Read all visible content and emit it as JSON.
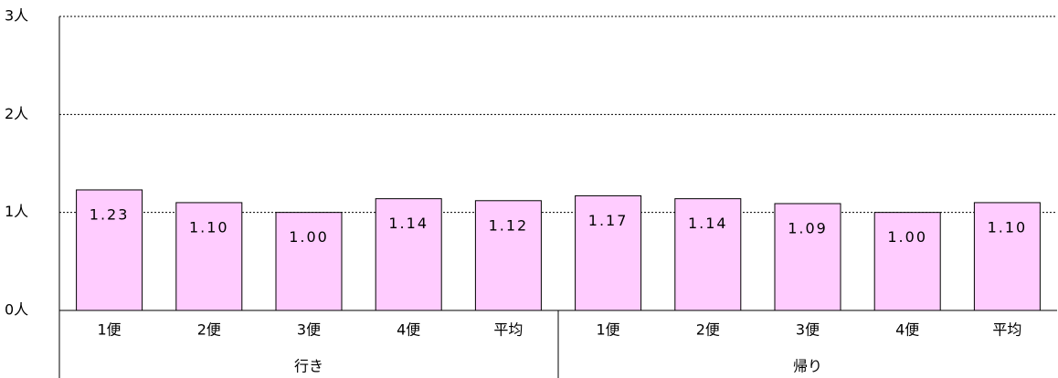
{
  "chart_data": {
    "type": "bar",
    "categories": [
      "1便",
      "2便",
      "3便",
      "4便",
      "平均",
      "1便",
      "2便",
      "3便",
      "4便",
      "平均"
    ],
    "category_groups": [
      {
        "label": "行き",
        "span": 5
      },
      {
        "label": "帰り",
        "span": 5
      }
    ],
    "values": [
      1.23,
      1.1,
      1.0,
      1.14,
      1.12,
      1.17,
      1.14,
      1.09,
      1.0,
      1.1
    ],
    "value_labels": [
      "1.23",
      "1.10",
      "1.00",
      "1.14",
      "1.12",
      "1.17",
      "1.14",
      "1.09",
      "1.00",
      "1.10"
    ],
    "color": "#ffccff",
    "ylim": [
      0,
      3
    ],
    "yticks": [
      {
        "value": 0,
        "label": "0人"
      },
      {
        "value": 1,
        "label": "1人"
      },
      {
        "value": 2,
        "label": "2人"
      },
      {
        "value": 3,
        "label": "3人"
      }
    ],
    "grid": true
  }
}
